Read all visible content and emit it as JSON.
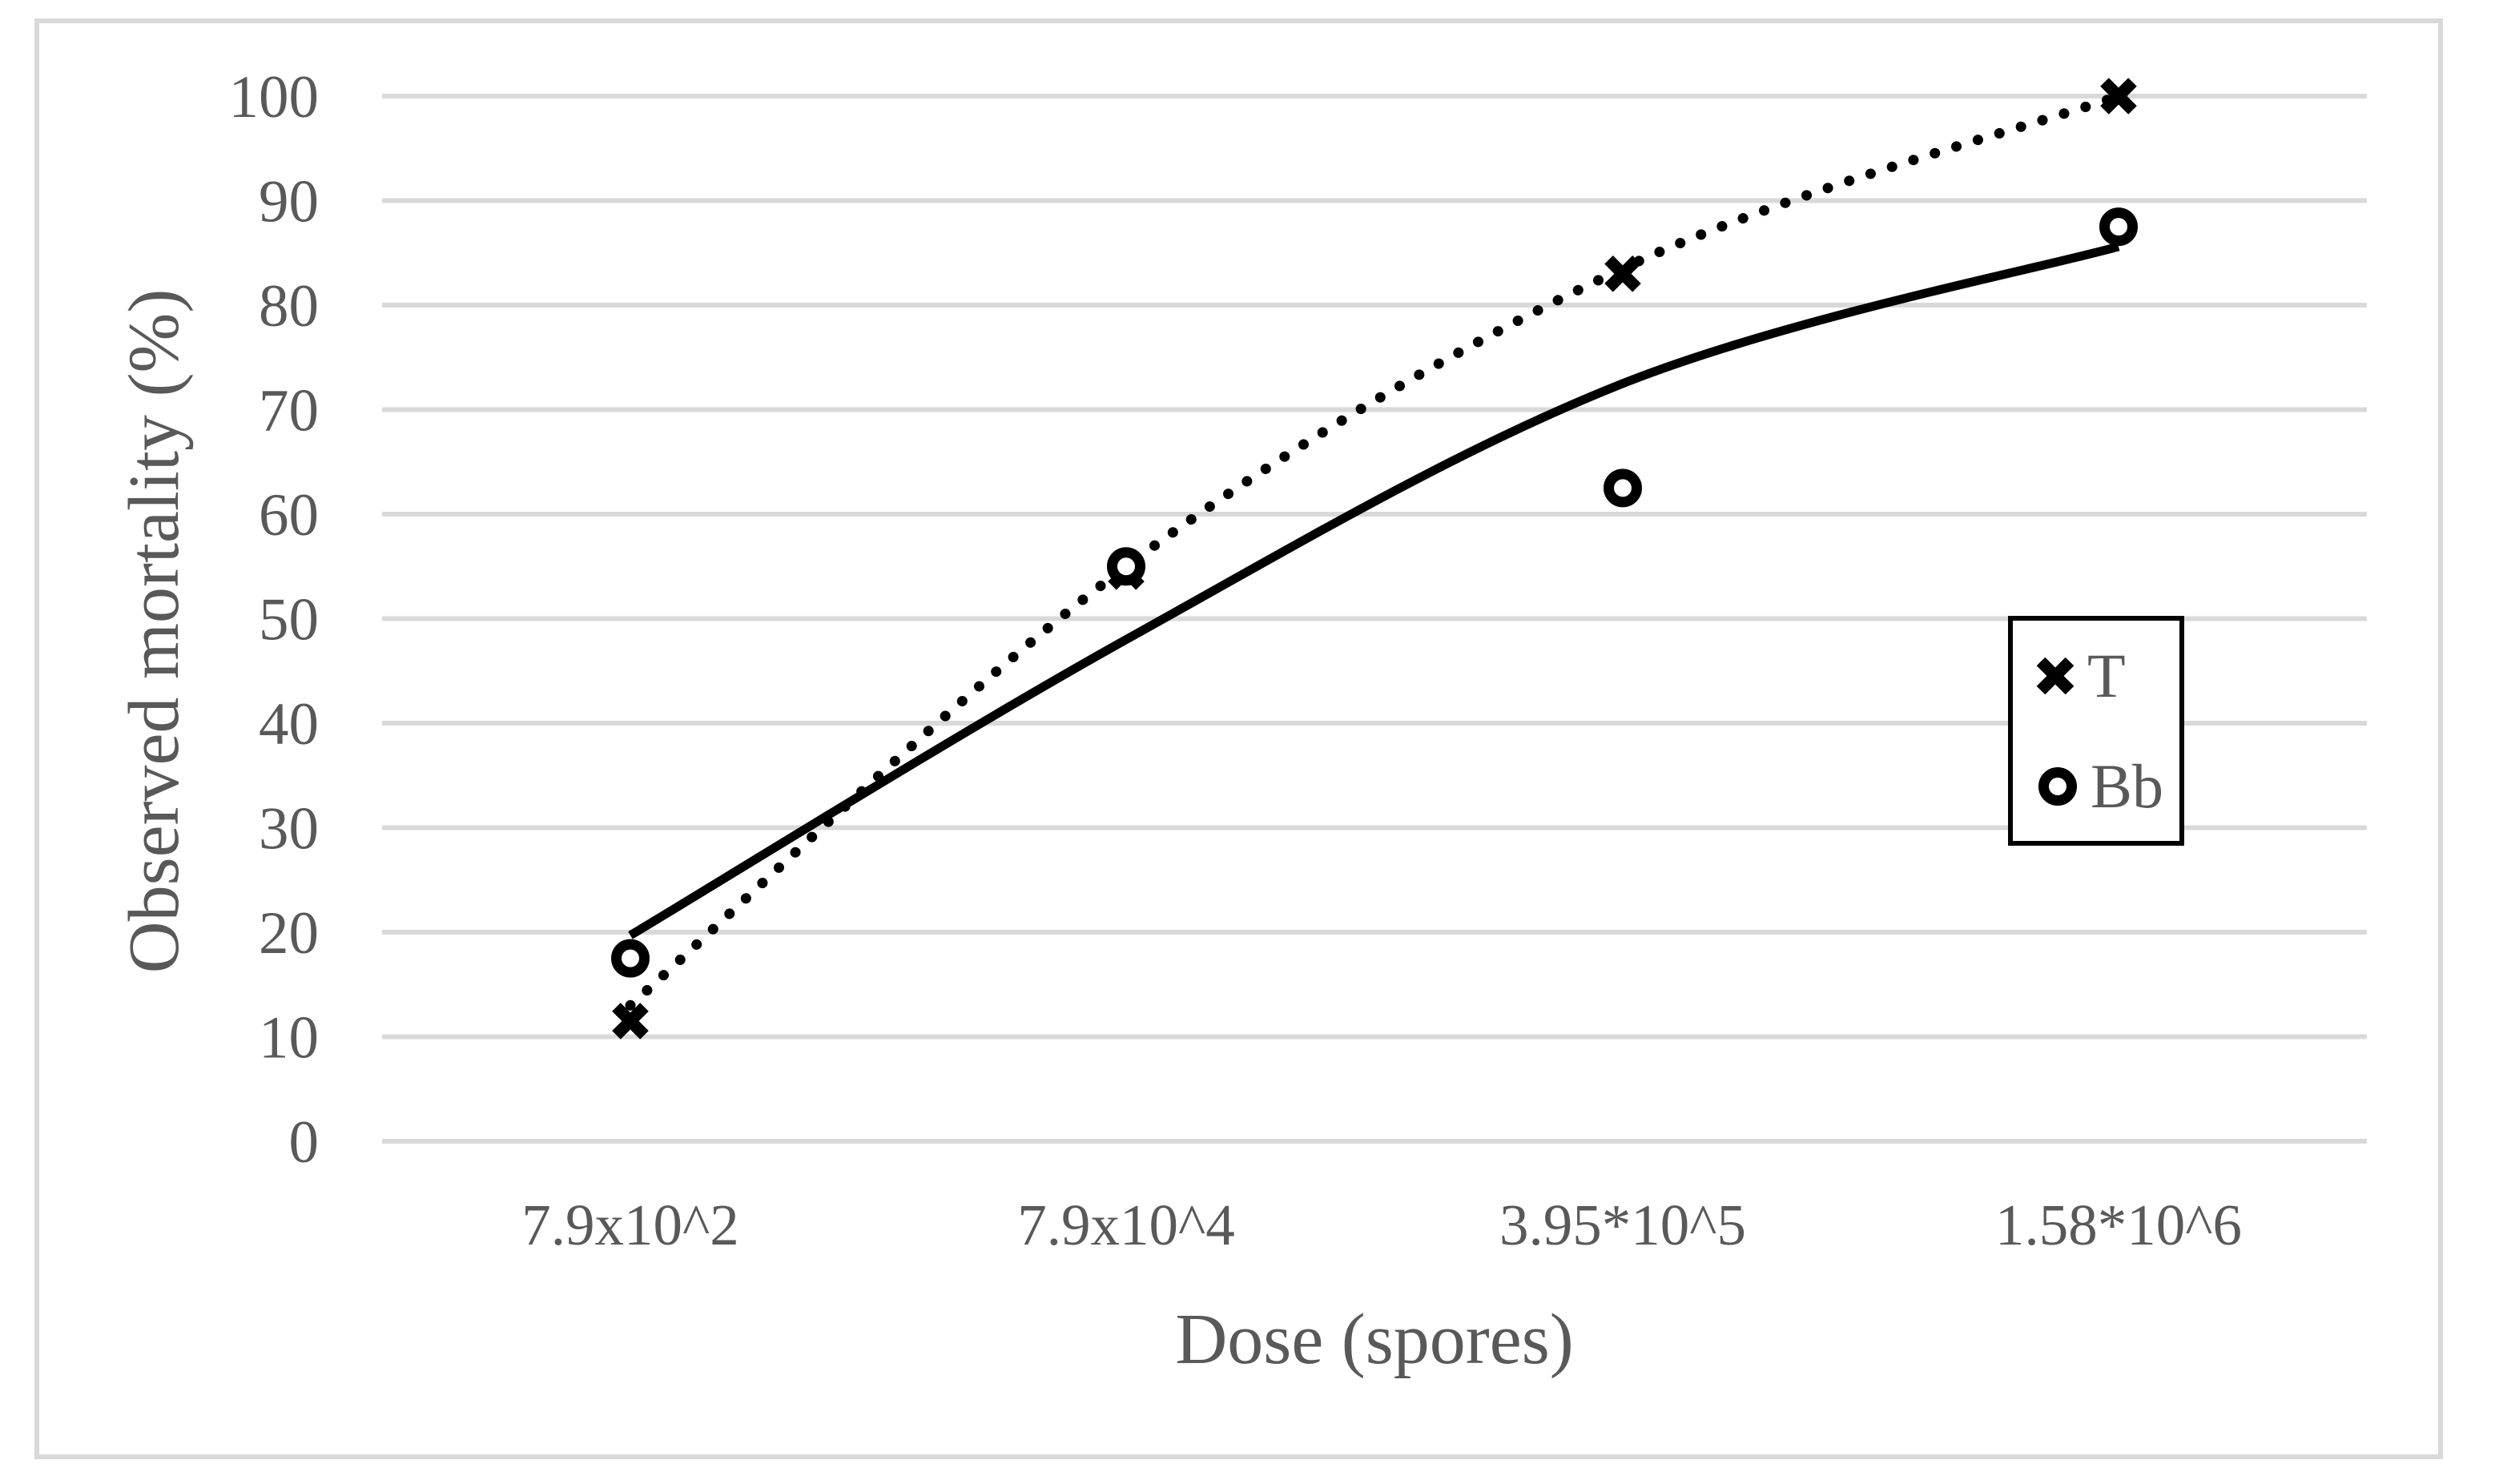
{
  "figure": {
    "background": "#ffffff",
    "border_color": "#d9d9d9"
  },
  "chart_data": {
    "type": "scatter",
    "title": "",
    "xlabel": "Dose (spores)",
    "ylabel": "Observed mortality (%)",
    "x_axis_scale": "categorical",
    "categories": [
      "7.9x10^2",
      "7.9x10^4",
      "3.95*10^5",
      "1.58*10^6"
    ],
    "yticks": [
      0,
      10,
      20,
      30,
      40,
      50,
      60,
      70,
      80,
      90,
      100
    ],
    "ylim": [
      0,
      100
    ],
    "grid": "horizontal-only",
    "legend_position": "middle-right",
    "series": [
      {
        "name": "T",
        "marker": "x",
        "values": [
          11.5,
          54.5,
          83,
          100
        ],
        "trendline": {
          "style": "dotted",
          "values": [
            13,
            55,
            83.5,
            100
          ]
        }
      },
      {
        "name": "Bb",
        "marker": "circle",
        "values": [
          17.5,
          55,
          62.5,
          87.5
        ],
        "trendline": {
          "style": "solid",
          "values": [
            19.7,
            48,
            72.5,
            85.6
          ]
        }
      }
    ],
    "colors": {
      "series": "#000000",
      "text": "#595959",
      "gridline": "#d9d9d9",
      "plot_background": "#ffffff"
    }
  }
}
